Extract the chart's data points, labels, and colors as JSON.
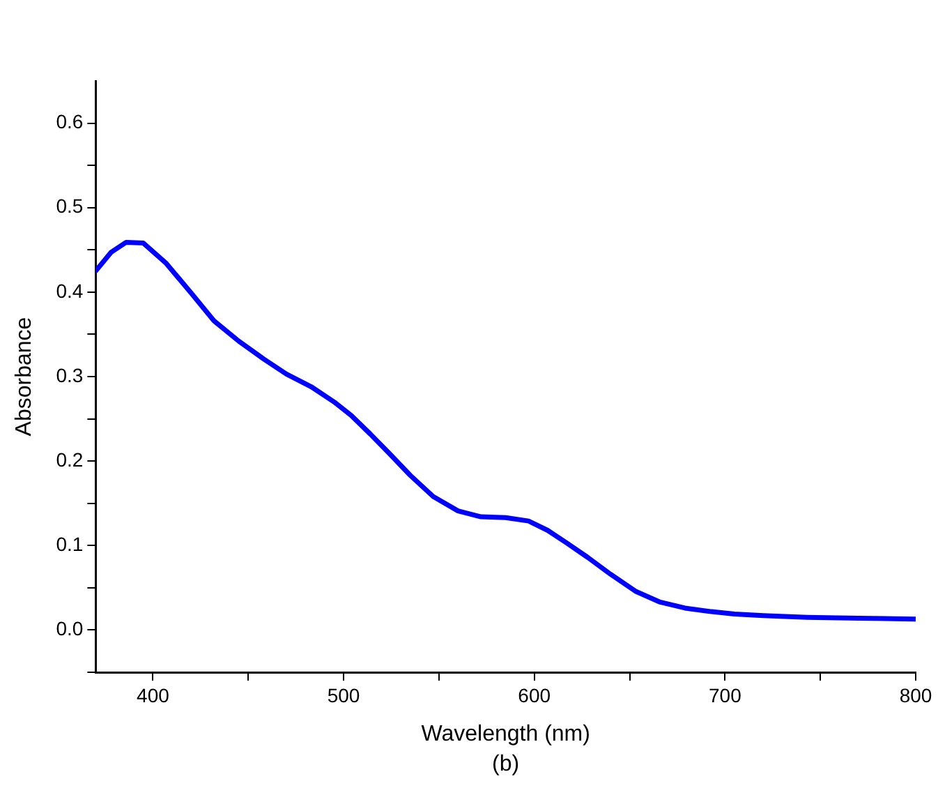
{
  "chart_data": {
    "type": "line",
    "xlabel": "Wavelength (nm)",
    "ylabel": "Absorbance",
    "annotations": [
      "(b)"
    ],
    "x": [
      370,
      378,
      386,
      395,
      407,
      420,
      432,
      445,
      458,
      470,
      483,
      495,
      504,
      514,
      524,
      535,
      547,
      560,
      572,
      585,
      597,
      607,
      617,
      628,
      640,
      653,
      666,
      679,
      692,
      705,
      720,
      743,
      770,
      800
    ],
    "series": [
      {
        "color": "#0000ff",
        "values": [
          0.425,
          0.447,
          0.459,
          0.458,
          0.434,
          0.399,
          0.366,
          0.342,
          0.321,
          0.303,
          0.288,
          0.27,
          0.254,
          0.232,
          0.209,
          0.183,
          0.158,
          0.141,
          0.134,
          0.133,
          0.129,
          0.118,
          0.103,
          0.086,
          0.066,
          0.046,
          0.033,
          0.026,
          0.022,
          0.019,
          0.017,
          0.015,
          0.014,
          0.013
        ]
      }
    ],
    "xlim": [
      370,
      800
    ],
    "xticks": [
      400,
      {
        "value": 450,
        "label": null
      },
      500,
      {
        "value": 550,
        "label": null
      },
      600,
      {
        "value": 650,
        "label": null
      },
      700,
      {
        "value": 750,
        "label": null
      },
      800
    ],
    "ylim": [
      -0.05,
      0.65
    ],
    "yticks": [
      {
        "value": -0.05,
        "label": null
      },
      {
        "value": 0,
        "label": "0.0"
      },
      {
        "value": 0.05,
        "label": null
      },
      0.1,
      {
        "value": 0.15,
        "label": null
      },
      0.2,
      {
        "value": 0.25,
        "label": null
      },
      0.3,
      {
        "value": 0.35,
        "label": null
      },
      0.4,
      {
        "value": 0.45,
        "label": null
      },
      0.5,
      {
        "value": 0.55,
        "label": null
      },
      0.6
    ],
    "grid": false,
    "legend": false,
    "marker": "none",
    "line_style": "solid"
  }
}
